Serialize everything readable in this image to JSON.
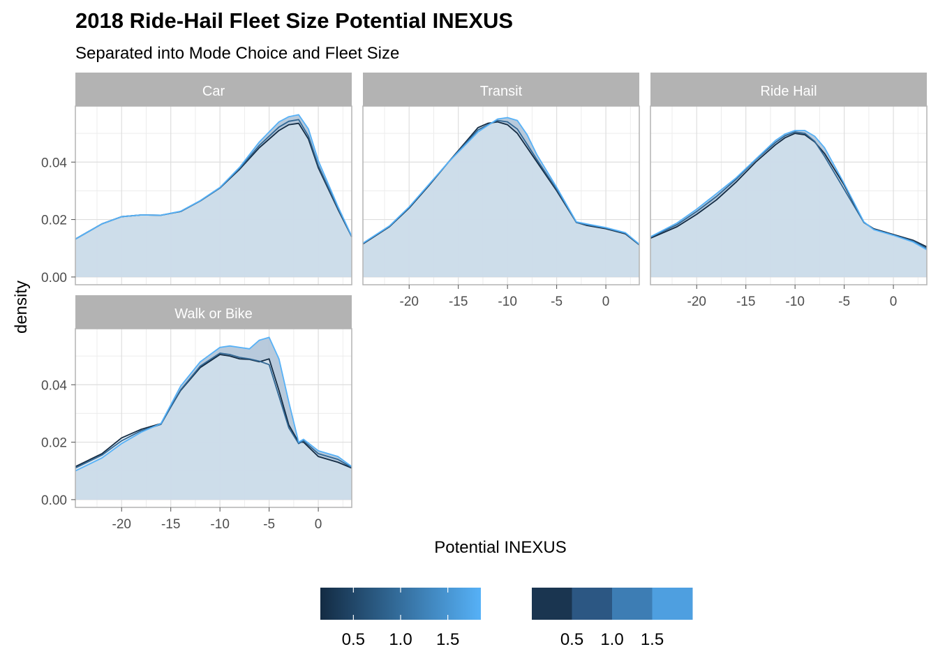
{
  "chart_data": {
    "type": "area",
    "title": "2018 Ride-Hail Fleet Size Potential INEXUS",
    "subtitle": "Separated into Mode Choice and Fleet Size",
    "xlabel": "Potential INEXUS",
    "ylabel": "density",
    "xlim": [
      -24.7,
      3.4
    ],
    "ylim": [
      -0.0027,
      0.0595
    ],
    "x_ticks": [
      -20,
      -15,
      -10,
      -5,
      0
    ],
    "x_tick_labels": [
      "-20",
      "-15",
      "-10",
      "-5",
      "0"
    ],
    "y_ticks": [
      0,
      0.02,
      0.04
    ],
    "y_tick_labels": [
      "0.00",
      "0.02",
      "0.04"
    ],
    "grid": true,
    "legend_placement": "bottom",
    "color_scale": {
      "low": "#132b43",
      "high": "#56b1f7",
      "fill": "#b0c4d8",
      "fill_highlight": "#e2eef8",
      "continuous_labels": [
        "0.5",
        "1.0",
        "1.5"
      ],
      "binned_colors": [
        "#1a3550",
        "#2c5783",
        "#3d7db4",
        "#4e9fe0"
      ],
      "binned_labels": [
        "0.5",
        "1.0",
        "1.5"
      ]
    },
    "panels": [
      {
        "name": "Car",
        "series": [
          {
            "x": [
              -24.7,
              -22,
              -20,
              -18,
              -16,
              -14,
              -12,
              -10,
              -8,
              -6,
              -4,
              -3,
              -2,
              -1,
              0,
              2,
              3.4
            ],
            "y": [
              0.0132,
              0.0185,
              0.021,
              0.0216,
              0.0215,
              0.0228,
              0.0265,
              0.031,
              0.0375,
              0.045,
              0.051,
              0.053,
              0.0535,
              0.048,
              0.038,
              0.0235,
              0.014
            ]
          },
          {
            "x": [
              -24.7,
              -22,
              -20,
              -18,
              -16,
              -14,
              -12,
              -10,
              -8,
              -6,
              -4,
              -3,
              -2,
              -1,
              0,
              2,
              3.4
            ],
            "y": [
              0.0132,
              0.0185,
              0.021,
              0.0216,
              0.0215,
              0.0228,
              0.0265,
              0.031,
              0.0378,
              0.0458,
              0.0522,
              0.0542,
              0.0548,
              0.049,
              0.0388,
              0.0238,
              0.0141
            ]
          },
          {
            "x": [
              -24.7,
              -22,
              -20,
              -18,
              -16,
              -14,
              -12,
              -10,
              -8,
              -6,
              -4,
              -3,
              -2,
              -1,
              0,
              2,
              3.4
            ],
            "y": [
              0.0132,
              0.0185,
              0.021,
              0.0216,
              0.0215,
              0.0229,
              0.0266,
              0.0312,
              0.0382,
              0.047,
              0.054,
              0.0558,
              0.0565,
              0.0515,
              0.0405,
              0.0245,
              0.0142
            ]
          }
        ]
      },
      {
        "name": "Transit",
        "series": [
          {
            "x": [
              -24.7,
              -22,
              -20,
              -18,
              -16,
              -14,
              -13,
              -12,
              -11,
              -10,
              -9,
              -8,
              -7,
              -5,
              -3,
              -2,
              0,
              2,
              3.4
            ],
            "y": [
              0.0115,
              0.0175,
              0.024,
              0.0318,
              0.04,
              0.048,
              0.052,
              0.0535,
              0.054,
              0.053,
              0.05,
              0.045,
              0.04,
              0.03,
              0.019,
              0.018,
              0.0168,
              0.015,
              0.0112
            ]
          },
          {
            "x": [
              -24.7,
              -22,
              -20,
              -18,
              -16,
              -14,
              -13,
              -12,
              -11,
              -10,
              -9,
              -8,
              -7,
              -5,
              -3,
              -2,
              0,
              2,
              3.4
            ],
            "y": [
              0.0117,
              0.0176,
              0.0242,
              0.032,
              0.04,
              0.0475,
              0.0512,
              0.053,
              0.0545,
              0.054,
              0.0515,
              0.0462,
              0.0408,
              0.0305,
              0.019,
              0.0182,
              0.017,
              0.0152,
              0.0113
            ]
          },
          {
            "x": [
              -24.7,
              -22,
              -20,
              -18,
              -16,
              -14,
              -13,
              -12,
              -11,
              -10,
              -9,
              -8,
              -7,
              -5,
              -3,
              -2,
              0,
              2,
              3.4
            ],
            "y": [
              0.0118,
              0.0178,
              0.0244,
              0.0322,
              0.04,
              0.047,
              0.0505,
              0.0528,
              0.055,
              0.0555,
              0.0545,
              0.0495,
              0.0425,
              0.0312,
              0.0192,
              0.0185,
              0.0172,
              0.0154,
              0.0114
            ]
          }
        ]
      },
      {
        "name": "Ride Hail",
        "series": [
          {
            "x": [
              -24.7,
              -22,
              -20,
              -18,
              -16,
              -14,
              -12,
              -11,
              -10,
              -9,
              -8,
              -7,
              -5,
              -3,
              -2,
              0,
              2,
              3.4
            ],
            "y": [
              0.0135,
              0.0175,
              0.0218,
              0.0268,
              0.033,
              0.04,
              0.046,
              0.0485,
              0.05,
              0.0495,
              0.047,
              0.043,
              0.032,
              0.019,
              0.0168,
              0.0148,
              0.0128,
              0.0105
            ]
          },
          {
            "x": [
              -24.7,
              -22,
              -20,
              -18,
              -16,
              -14,
              -12,
              -11,
              -10,
              -9,
              -8,
              -7,
              -5,
              -3,
              -2,
              0,
              2,
              3.4
            ],
            "y": [
              0.0138,
              0.0182,
              0.0228,
              0.028,
              0.034,
              0.0408,
              0.0468,
              0.0492,
              0.0505,
              0.05,
              0.0472,
              0.042,
              0.0305,
              0.019,
              0.0166,
              0.0146,
              0.0125,
              0.01
            ]
          },
          {
            "x": [
              -24.7,
              -22,
              -20,
              -18,
              -16,
              -14,
              -12,
              -11,
              -10,
              -9,
              -8,
              -7,
              -5,
              -3,
              -2,
              0,
              2,
              3.4
            ],
            "y": [
              0.014,
              0.0188,
              0.0236,
              0.029,
              0.0345,
              0.041,
              0.0475,
              0.0498,
              0.051,
              0.051,
              0.049,
              0.045,
              0.0325,
              0.0192,
              0.0165,
              0.0145,
              0.0122,
              0.0095
            ]
          }
        ]
      },
      {
        "name": "Walk or Bike",
        "series": [
          {
            "x": [
              -24.7,
              -22,
              -20,
              -18,
              -16,
              -14,
              -12,
              -10,
              -9,
              -8,
              -7,
              -6,
              -5,
              -4,
              -3,
              -2,
              -1.5,
              0,
              2,
              3.4
            ],
            "y": [
              0.0115,
              0.016,
              0.0215,
              0.0245,
              0.0265,
              0.038,
              0.046,
              0.0505,
              0.05,
              0.049,
              0.0488,
              0.048,
              0.049,
              0.038,
              0.026,
              0.02,
              0.02,
              0.015,
              0.013,
              0.011
            ]
          },
          {
            "x": [
              -24.7,
              -22,
              -20,
              -18,
              -16,
              -14,
              -12,
              -10,
              -9,
              -8,
              -7,
              -6,
              -5,
              -4,
              -3,
              -2,
              -1.5,
              0,
              2,
              3.4
            ],
            "y": [
              0.011,
              0.0155,
              0.0205,
              0.024,
              0.0262,
              0.0382,
              0.0465,
              0.051,
              0.0505,
              0.0495,
              0.049,
              0.0482,
              0.047,
              0.036,
              0.025,
              0.0195,
              0.0205,
              0.016,
              0.014,
              0.0112
            ]
          },
          {
            "x": [
              -24.7,
              -22,
              -20,
              -18,
              -16,
              -14,
              -12,
              -10,
              -9,
              -8,
              -7,
              -6,
              -5,
              -4,
              -3,
              -2,
              -1.5,
              0,
              2,
              3.4
            ],
            "y": [
              0.01,
              0.0145,
              0.0195,
              0.0235,
              0.0265,
              0.0395,
              0.048,
              0.053,
              0.0535,
              0.053,
              0.0525,
              0.0555,
              0.0565,
              0.049,
              0.034,
              0.02,
              0.021,
              0.017,
              0.015,
              0.0115
            ]
          }
        ]
      }
    ]
  }
}
